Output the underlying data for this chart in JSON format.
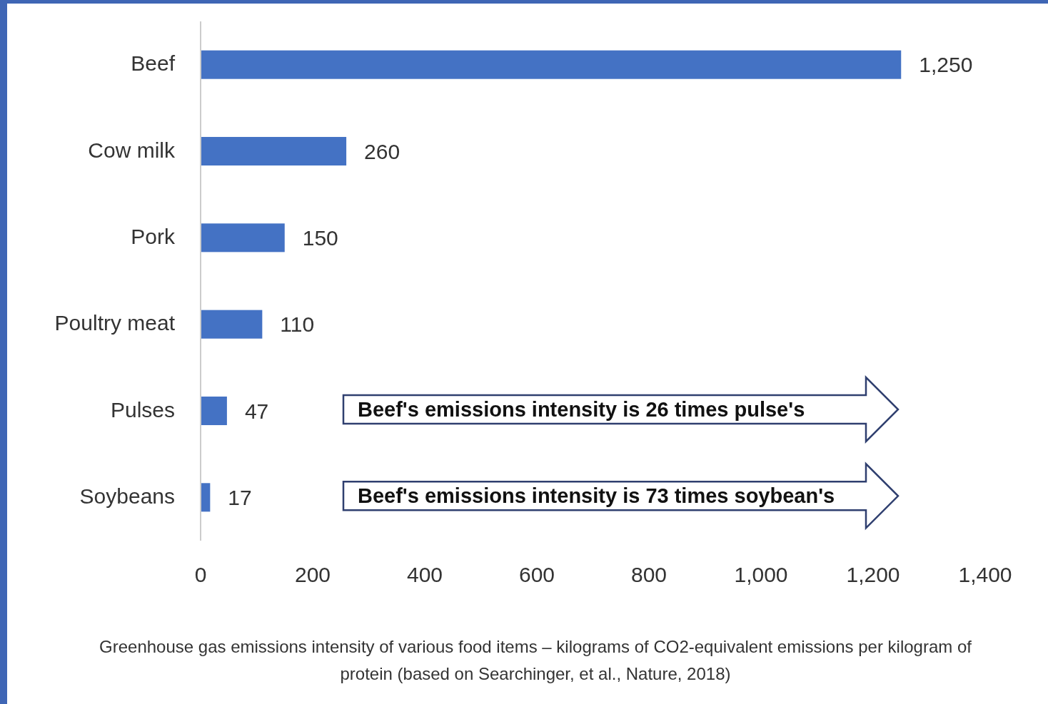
{
  "chart_data": {
    "type": "bar",
    "orientation": "horizontal",
    "categories": [
      "Beef",
      "Cow milk",
      "Pork",
      "Poultry meat",
      "Pulses",
      "Soybeans"
    ],
    "values": [
      1250,
      260,
      150,
      110,
      47,
      17
    ],
    "value_labels": [
      "1,250",
      "260",
      "150",
      "110",
      "47",
      "17"
    ],
    "color": "#4472c4",
    "xlim": [
      0,
      1400
    ],
    "xticks": [
      0,
      200,
      400,
      600,
      800,
      {
        "value": 1000,
        "label": "1,000"
      },
      {
        "value": 1200,
        "label": "1,200"
      },
      {
        "value": 1400,
        "label": "1,400"
      }
    ],
    "grid": false,
    "annotations": [
      "Beef's emissions intensity is 26 times pulse's",
      "Beef's emissions intensity is 73 times soybean's",
      "Greenhouse gas emissions intensity of various food items – kilograms of CO2-equivalent emissions per kilogram of protein (based on Searchinger, et al., Nature, 2018)"
    ]
  }
}
